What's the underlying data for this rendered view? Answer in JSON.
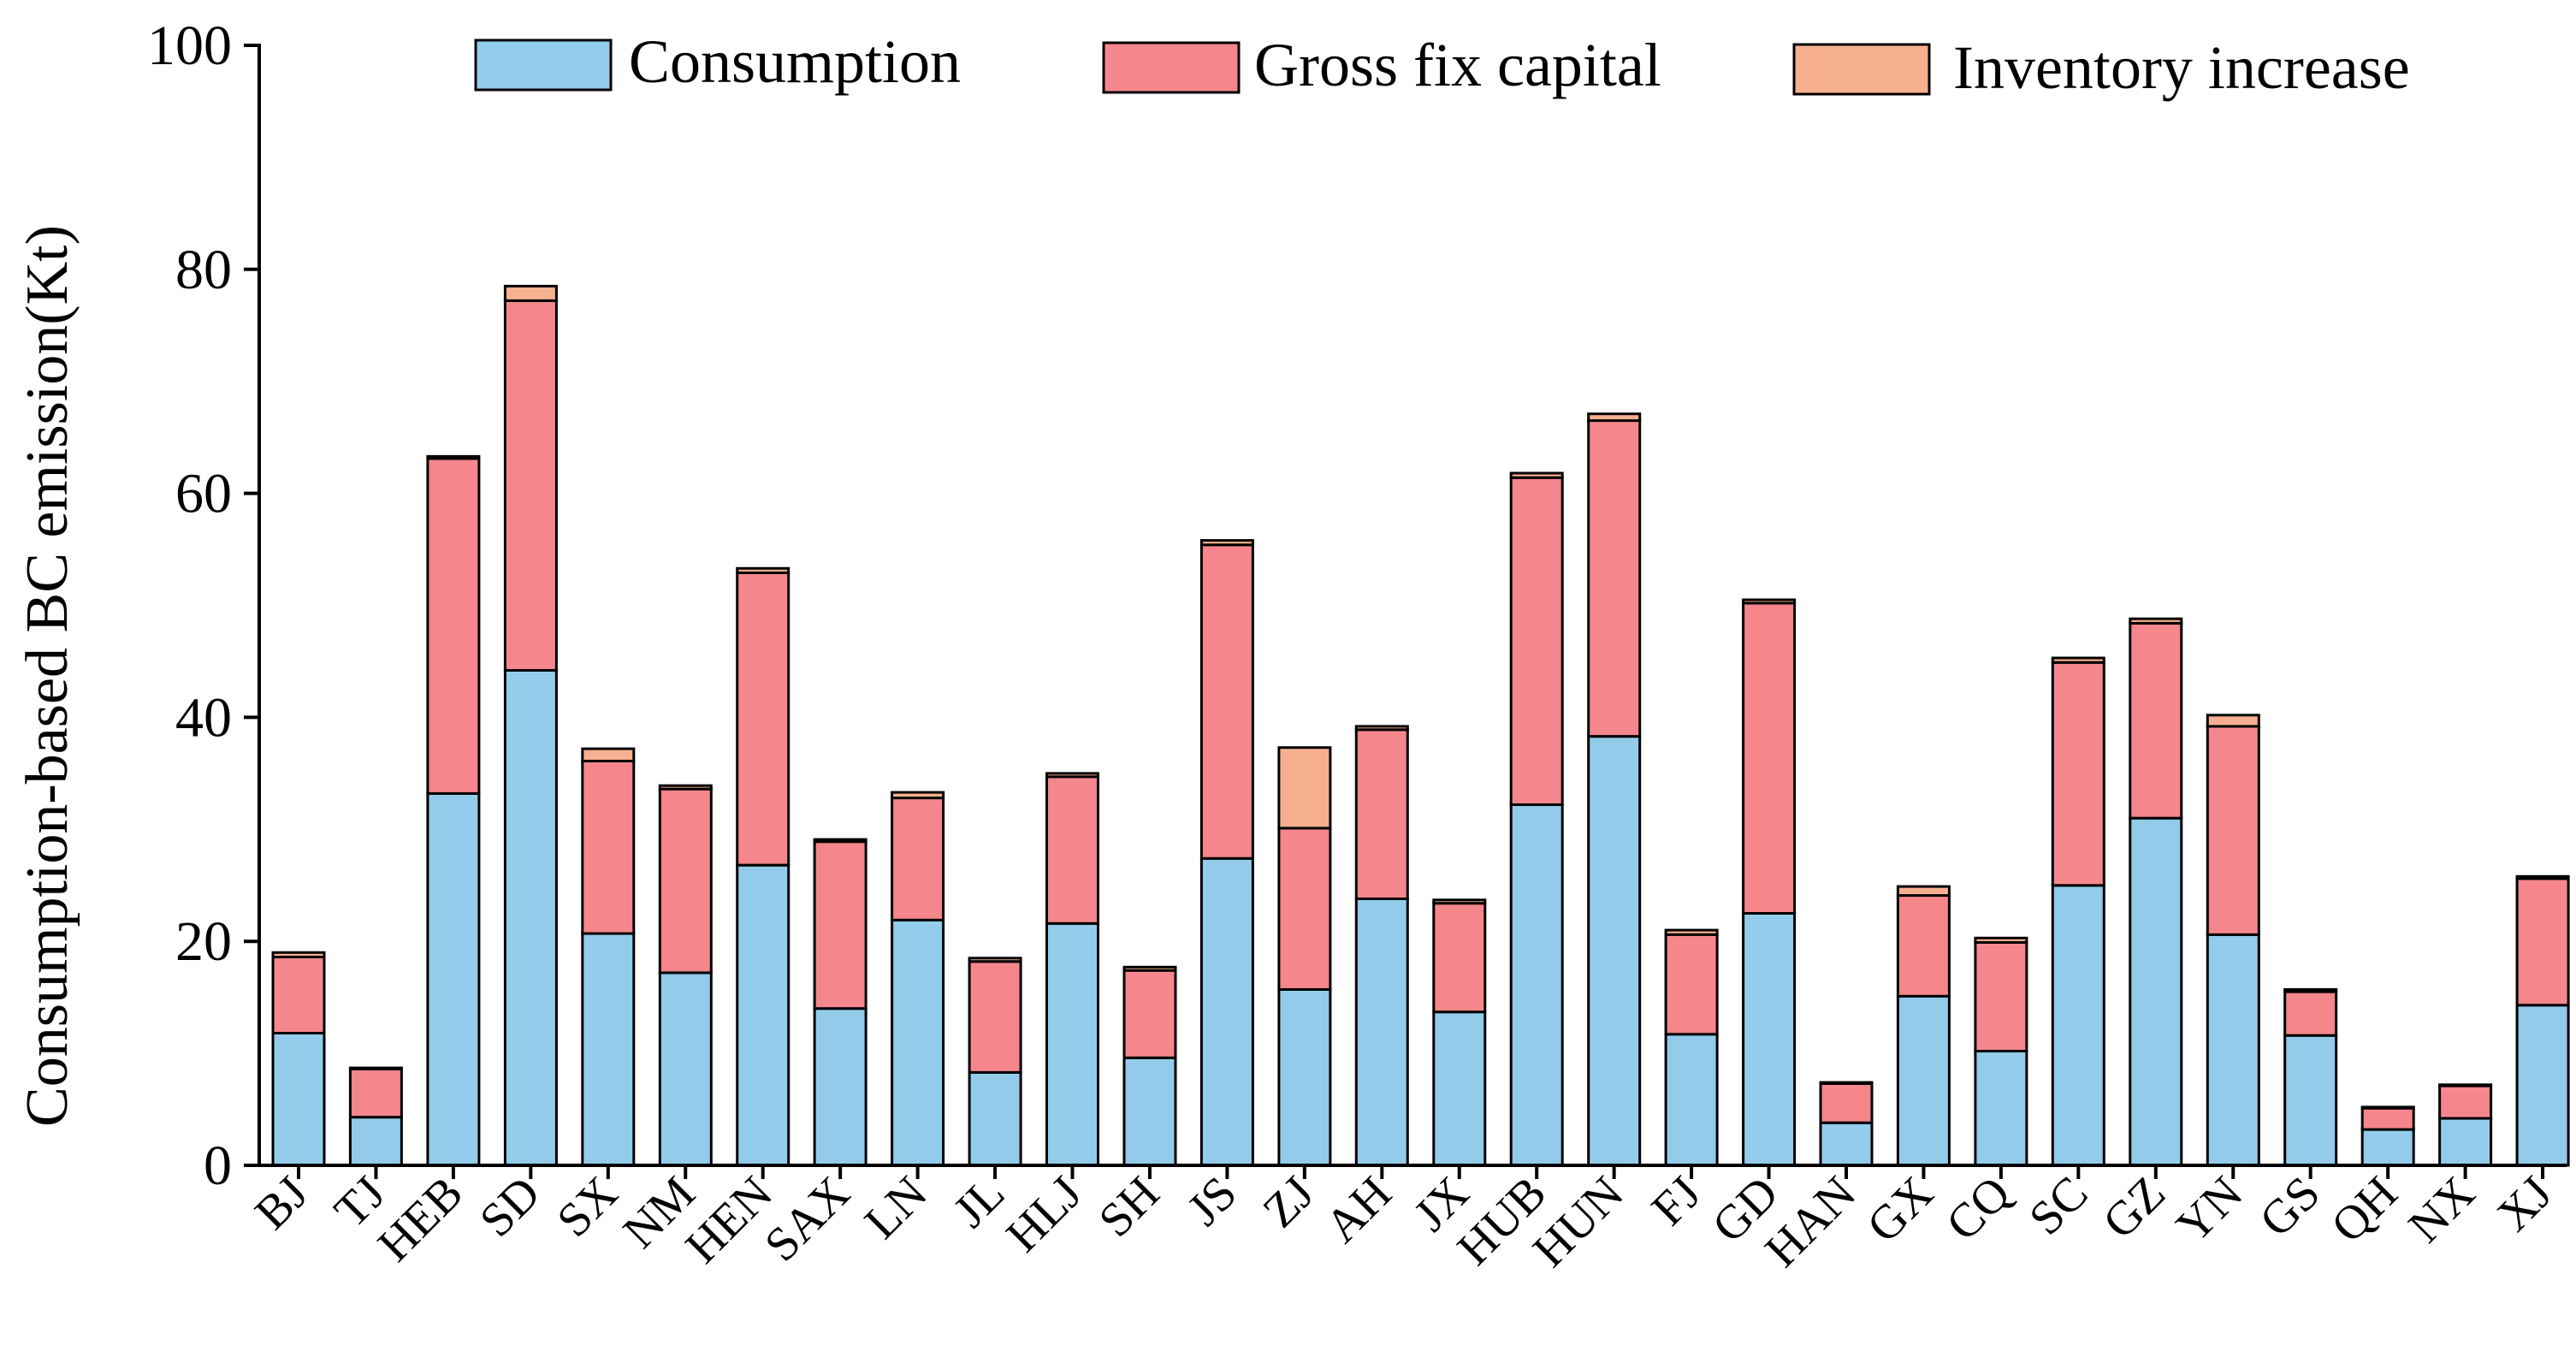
{
  "chart_data": {
    "type": "bar",
    "stacked": true,
    "title": "",
    "xlabel": "",
    "ylabel": "Consumption-based BC emission(Kt)",
    "ylim": [
      0,
      100
    ],
    "yticks": [
      0,
      20,
      40,
      60,
      80,
      100
    ],
    "grid": false,
    "legend_position": "top",
    "categories": [
      "BJ",
      "TJ",
      "HEB",
      "SD",
      "SX",
      "NM",
      "HEN",
      "SAX",
      "LN",
      "JL",
      "HLJ",
      "SH",
      "JS",
      "ZJ",
      "AH",
      "JX",
      "HUB",
      "HUN",
      "FJ",
      "GD",
      "HAN",
      "GX",
      "CQ",
      "SC",
      "GZ",
      "YN",
      "GS",
      "QH",
      "NX",
      "XJ"
    ],
    "series": [
      {
        "name": "Consumption",
        "color": "#93cbea",
        "values": [
          11.8,
          4.3,
          33.2,
          44.2,
          20.7,
          17.2,
          26.8,
          14.0,
          21.9,
          8.3,
          21.6,
          9.6,
          27.4,
          15.7,
          23.8,
          13.7,
          32.2,
          38.3,
          11.7,
          22.5,
          3.8,
          15.1,
          10.2,
          25.0,
          31.0,
          20.6,
          11.6,
          3.2,
          4.2,
          14.3
        ]
      },
      {
        "name": "Gross fix capital",
        "color": "#f4868c",
        "values": [
          6.8,
          4.3,
          29.9,
          33.0,
          15.4,
          16.4,
          26.1,
          14.9,
          10.9,
          9.9,
          13.1,
          7.8,
          28.0,
          14.4,
          15.1,
          9.7,
          29.2,
          28.2,
          8.9,
          27.7,
          3.5,
          9.0,
          9.7,
          19.9,
          17.4,
          18.6,
          3.9,
          1.9,
          2.9,
          11.3
        ]
      },
      {
        "name": "Inventory increase",
        "color": "#f7b08f",
        "values": [
          0.4,
          0.1,
          0.2,
          1.3,
          1.1,
          0.3,
          0.4,
          0.2,
          0.5,
          0.3,
          0.3,
          0.3,
          0.4,
          7.2,
          0.3,
          0.3,
          0.4,
          0.6,
          0.4,
          0.3,
          0.1,
          0.8,
          0.4,
          0.4,
          0.4,
          1.0,
          0.2,
          0.1,
          0.1,
          0.2
        ]
      }
    ]
  }
}
